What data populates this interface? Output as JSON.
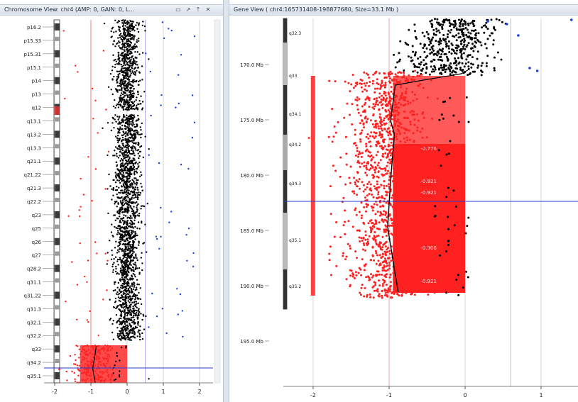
{
  "left_panel": {
    "title": "Chromosome View: chr4 (AMP: 0, GAIN: 0, L...",
    "buttons": [
      "▭",
      "↗",
      "⇡",
      "✕"
    ],
    "band_labels": [
      "p16.2",
      "p15.33",
      "p15.31",
      "p15.1",
      "p14",
      "p13",
      "q12",
      "q13.1",
      "q13.2",
      "q13.3",
      "q21.1",
      "q21.22",
      "q21.3",
      "q22.2",
      "q23",
      "q25",
      "q26",
      "q27",
      "q28.2",
      "q31.1",
      "q31.22",
      "q31.3",
      "q32.1",
      "q32.2",
      "q33",
      "q34.2",
      "q35.1"
    ],
    "x_ticks": [
      "-2",
      "-1",
      "0",
      "1",
      "2"
    ],
    "colors": {
      "loss": "#ff2020",
      "neutral": "#000000",
      "gain": "#1f3fe0",
      "segment": "#ff2a2a",
      "cursor": "#2a3ad0"
    }
  },
  "right_panel": {
    "title": "Gene View ( chr4:165731408-198877680, Size=33.1 Mb )",
    "y_ticks": [
      "170.0 Mb",
      "175.0 Mb",
      "180.0 Mb",
      "185.0 Mb",
      "190.0 Mb",
      "195.0 Mb"
    ],
    "band_labels": [
      "q32.3",
      "q33",
      "q34.1",
      "q34.2",
      "q34.3",
      "q35.1",
      "q35.2"
    ],
    "x_ticks": [
      "-2",
      "-1",
      "0",
      "1"
    ],
    "segment_labels": [
      "-0.776",
      "-0.921",
      "-0.921",
      "-0.906",
      "-0.921"
    ]
  }
}
